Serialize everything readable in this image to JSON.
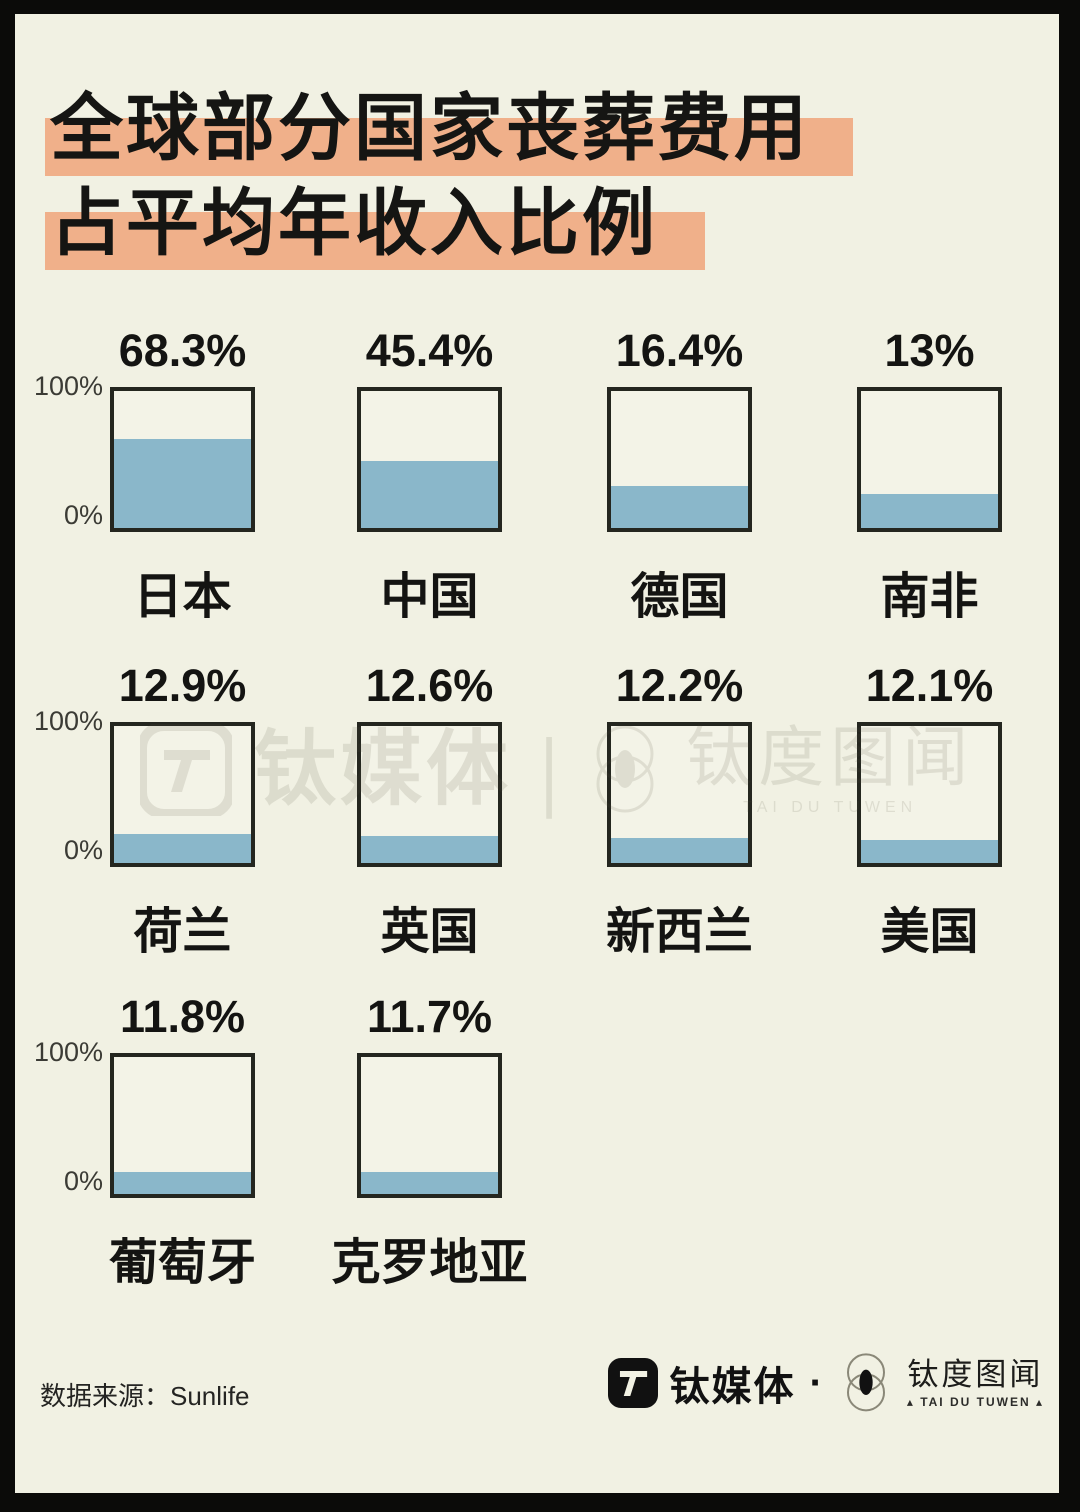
{
  "title": {
    "line1": "全球部分国家丧葬费用",
    "line2": "占平均年收入比例"
  },
  "chart_data": {
    "type": "bar",
    "title": "全球部分国家丧葬费用占平均年收入比例",
    "categories": [
      "日本",
      "中国",
      "德国",
      "南非",
      "荷兰",
      "英国",
      "新西兰",
      "美国",
      "葡萄牙",
      "克罗地亚"
    ],
    "values": [
      68.3,
      45.4,
      16.4,
      13,
      12.9,
      12.6,
      12.2,
      12.1,
      11.8,
      11.7
    ],
    "value_labels": [
      "68.3%",
      "45.4%",
      "16.4%",
      "13%",
      "12.9%",
      "12.6%",
      "12.2%",
      "12.1%",
      "11.8%",
      "11.7%"
    ],
    "unit": "%",
    "ylim": [
      0,
      100
    ],
    "axis_ticks": {
      "top": "100%",
      "bottom": "0%"
    },
    "fill_percents": [
      65,
      49,
      31,
      25,
      21,
      20,
      18,
      17,
      16,
      16
    ],
    "legend": "none",
    "grid": "off",
    "colors": {
      "fill": "#8ab7ca",
      "box_border": "#24261f",
      "background": "#f1f1e3",
      "title_highlight": "#f0b08a",
      "text": "#141412"
    }
  },
  "watermark": {
    "brand1": "钛媒体",
    "separator": "|",
    "brand2": "钛度图闻",
    "brand2_sub": "TAI DU TUWEN"
  },
  "footer": {
    "source_label": "数据来源：Sunlife",
    "brand1": "钛媒体",
    "dot": "·",
    "brand2": "钛度图闻",
    "brand2_sub": "▴ TAI DU TUWEN ▴"
  }
}
